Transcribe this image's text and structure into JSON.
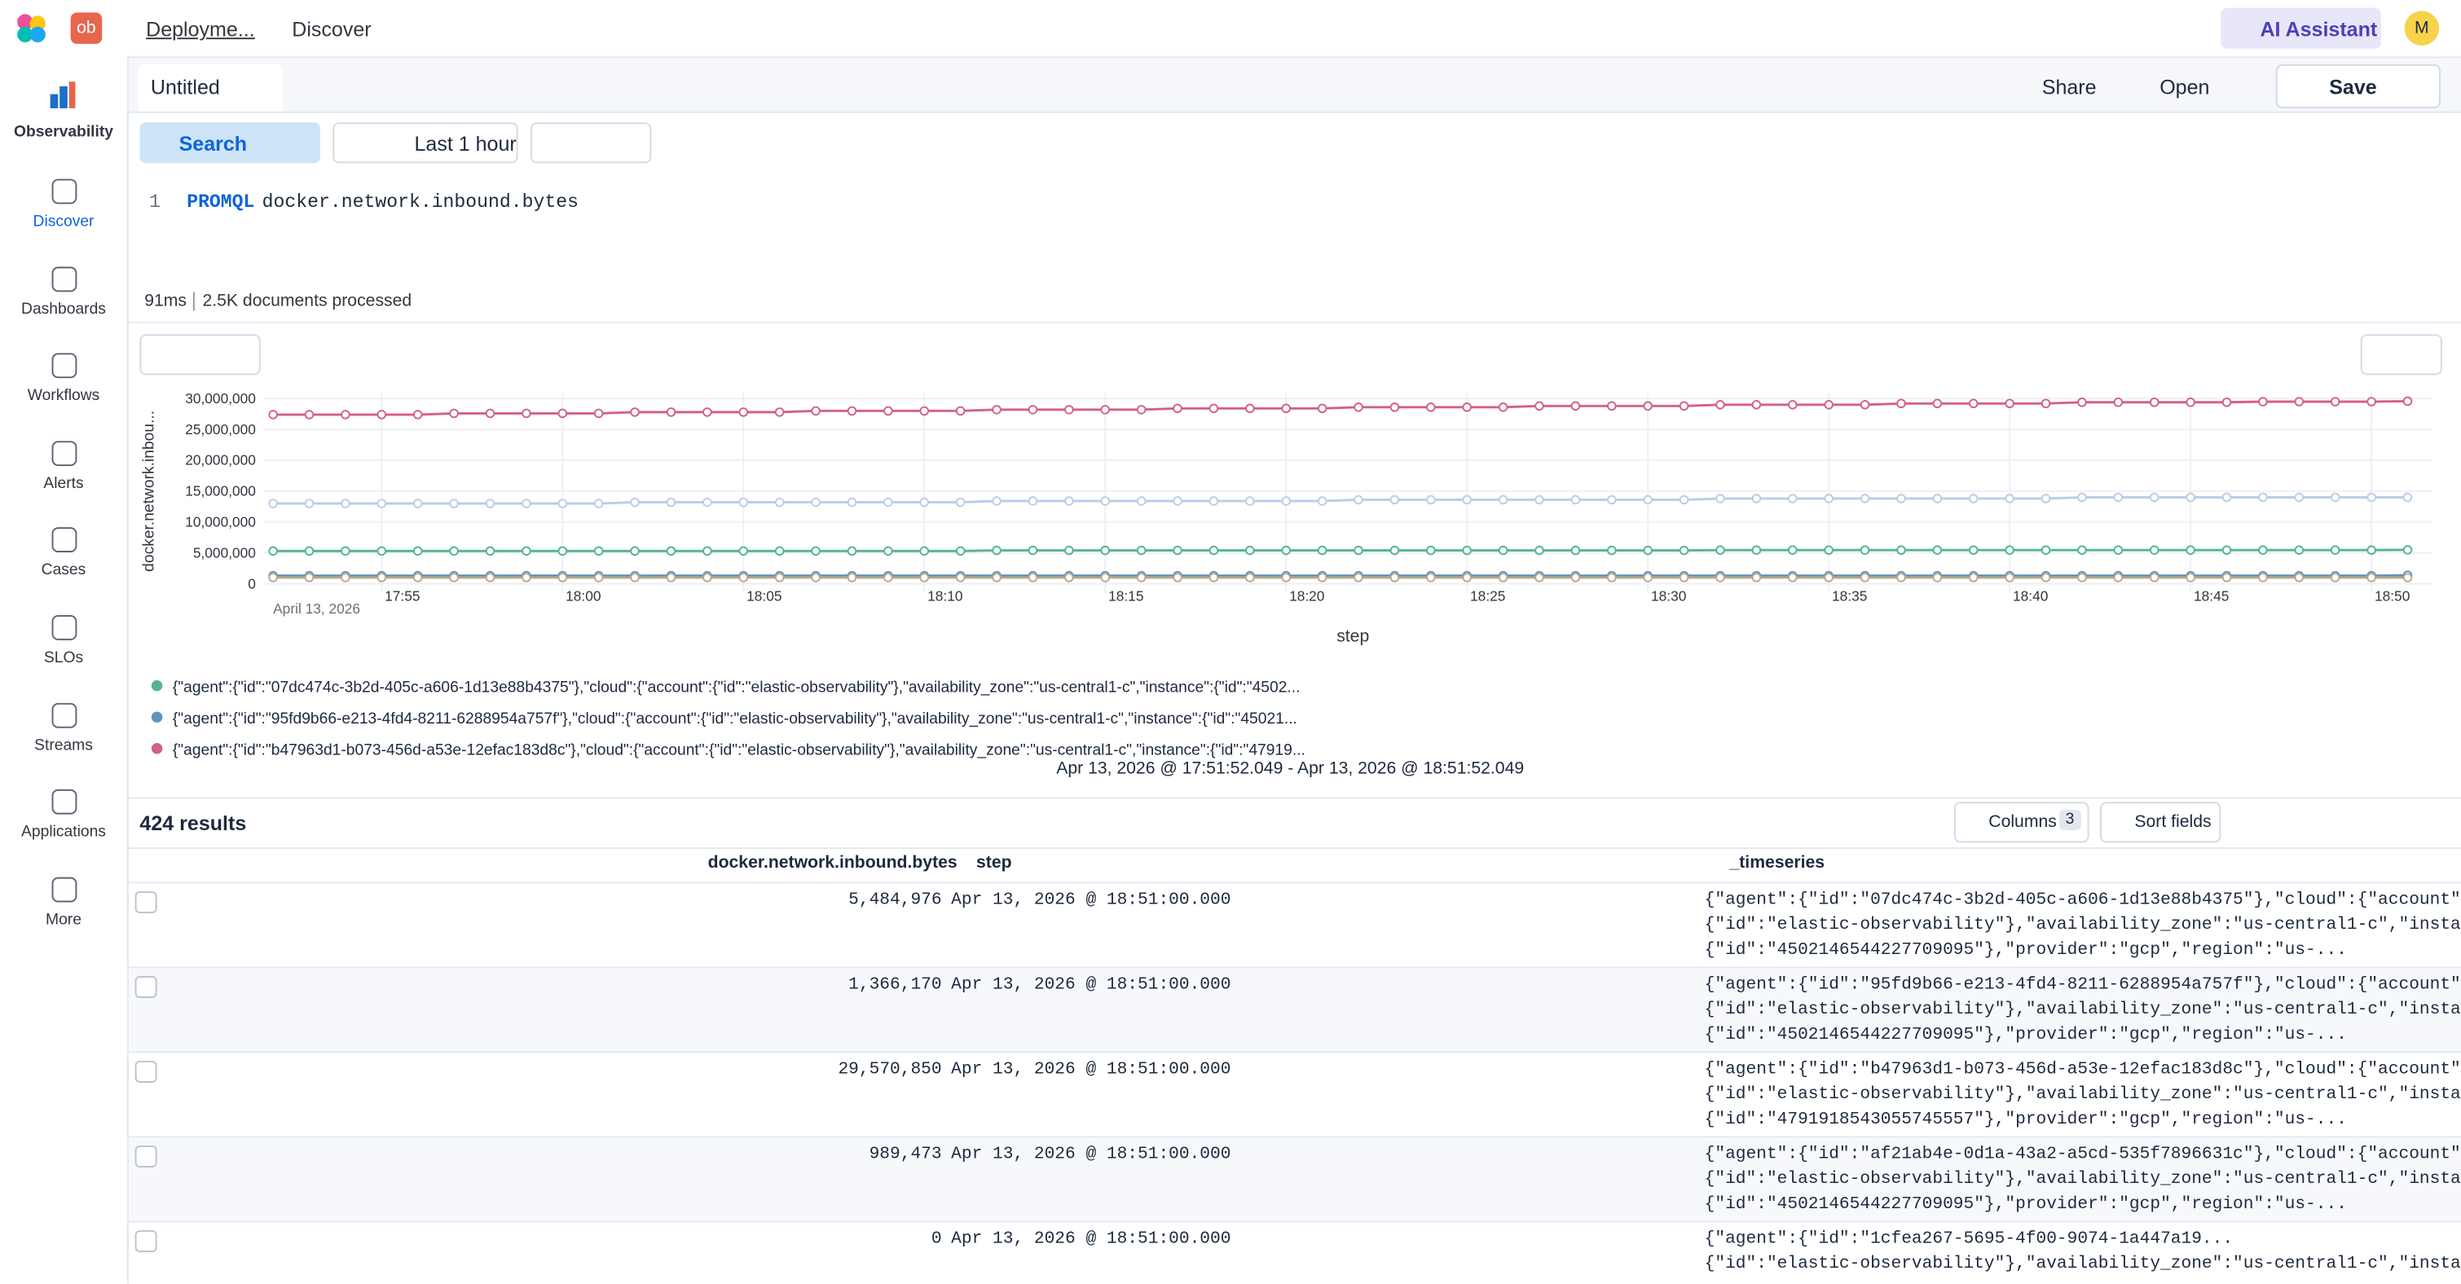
{
  "header": {
    "logo_badge": "ob",
    "breadcrumb": "Deployme...",
    "page": "Discover",
    "ai": "AI Assistant",
    "avatar": "M"
  },
  "sidebar": {
    "brand": "Observability",
    "items": [
      "Discover",
      "Dashboards",
      "Workflows",
      "Alerts",
      "Cases",
      "SLOs",
      "Streams",
      "Applications",
      "More"
    ]
  },
  "tabs": {
    "tab": "Untitled",
    "share": "Share",
    "open": "Open",
    "save": "Save"
  },
  "query": {
    "search": "Search",
    "time": "Last 1 hour",
    "line": "1",
    "keyword": "PROMQL",
    "text": "docker.network.inbound.bytes",
    "took": "91ms",
    "processed": "2.5K documents processed"
  },
  "chart_data": {
    "type": "line",
    "ylabel": "docker.network.inbou...",
    "xlabel": "step",
    "date": "April 13, 2026",
    "range": "Apr 13, 2026 @ 17:51:52.049 - Apr 13, 2026 @ 18:51:52.049",
    "grid": true,
    "ylim": [
      0,
      30000000
    ],
    "yticks": [
      0,
      {
        "value": 5000000,
        "label": "5,000,000"
      },
      {
        "value": 10000000,
        "label": "10,000,000"
      },
      {
        "value": 15000000,
        "label": "15,000,000"
      },
      {
        "value": 20000000,
        "label": "20,000,000"
      },
      {
        "value": 25000000,
        "label": "25,000,000"
      },
      {
        "value": 30000000,
        "label": "30,000,000"
      }
    ],
    "categories": [
      null,
      null,
      null,
      "17:55",
      null,
      null,
      null,
      null,
      "18:00",
      null,
      null,
      null,
      null,
      "18:05",
      null,
      null,
      null,
      null,
      "18:10",
      null,
      null,
      null,
      null,
      "18:15",
      null,
      null,
      null,
      null,
      "18:20",
      null,
      null,
      null,
      null,
      "18:25",
      null,
      null,
      null,
      null,
      "18:30",
      null,
      null,
      null,
      null,
      "18:35",
      null,
      null,
      null,
      null,
      "18:40",
      null,
      null,
      null,
      null,
      "18:45",
      null,
      null,
      null,
      null,
      "18:50",
      null
    ],
    "series": [
      {
        "name": "{\"agent\":{\"id\":\"07dc474c-3b2d-405c-a606-1d13e88b4375\"},\"cloud\":{\"account\":{\"id\":\"elastic-observability\"},\"availability_zone\":\"us-central1-c\",\"instance\":{\"id\":\"4502...",
        "color": "#54b399",
        "values": [
          5300000,
          5300000,
          5300000,
          5300000,
          5300000,
          5300000,
          5300000,
          5300000,
          5300000,
          5300000,
          5300000,
          5300000,
          5300000,
          5300000,
          5300000,
          5300000,
          5300000,
          5300000,
          5300000,
          5300000,
          5400000,
          5400000,
          5400000,
          5400000,
          5400000,
          5400000,
          5400000,
          5400000,
          5400000,
          5400000,
          5400000,
          5400000,
          5400000,
          5400000,
          5400000,
          5400000,
          5400000,
          5400000,
          5400000,
          5400000,
          5450000,
          5450000,
          5450000,
          5450000,
          5450000,
          5450000,
          5450000,
          5450000,
          5450000,
          5450000,
          5450000,
          5450000,
          5450000,
          5450000,
          5450000,
          5450000,
          5450000,
          5450000,
          5450000,
          5484976
        ]
      },
      {
        "name": "{\"agent\":{\"id\":\"95fd9b66-e213-4fd4-8211-6288954a757f\"},\"cloud\":{\"account\":{\"id\":\"elastic-observability\"},\"availability_zone\":\"us-central1-c\",\"instance\":{\"id\":\"45021...",
        "color": "#6092c0",
        "values": [
          1300000,
          1300000,
          1300000,
          1300000,
          1300000,
          1300000,
          1300000,
          1300000,
          1300000,
          1300000,
          1300000,
          1300000,
          1300000,
          1300000,
          1300000,
          1300000,
          1300000,
          1300000,
          1300000,
          1300000,
          1300000,
          1300000,
          1300000,
          1300000,
          1300000,
          1300000,
          1300000,
          1300000,
          1300000,
          1300000,
          1300000,
          1300000,
          1300000,
          1300000,
          1300000,
          1300000,
          1300000,
          1300000,
          1300000,
          1300000,
          1300000,
          1300000,
          1300000,
          1300000,
          1300000,
          1300000,
          1300000,
          1300000,
          1300000,
          1300000,
          1300000,
          1300000,
          1300000,
          1300000,
          1300000,
          1300000,
          1300000,
          1300000,
          1300000,
          1366170
        ]
      },
      {
        "name": "{\"agent\":{\"id\":\"b47963d1-b073-456d-a53e-12efac183d8c\"},\"cloud\":{\"account\":{\"id\":\"elastic-observability\"},\"availability_zone\":\"us-central1-c\",\"instance\":{\"id\":\"47919...",
        "color": "#d36086",
        "values": [
          27400000,
          27400000,
          27400000,
          27400000,
          27400000,
          27600000,
          27600000,
          27600000,
          27600000,
          27600000,
          27800000,
          27800000,
          27800000,
          27800000,
          27800000,
          28000000,
          28000000,
          28000000,
          28000000,
          28000000,
          28200000,
          28200000,
          28200000,
          28200000,
          28200000,
          28400000,
          28400000,
          28400000,
          28400000,
          28400000,
          28600000,
          28600000,
          28600000,
          28600000,
          28600000,
          28800000,
          28800000,
          28800000,
          28800000,
          28800000,
          29000000,
          29000000,
          29000000,
          29000000,
          29000000,
          29200000,
          29200000,
          29200000,
          29200000,
          29200000,
          29400000,
          29400000,
          29400000,
          29400000,
          29400000,
          29500000,
          29500000,
          29500000,
          29500000,
          29570850
        ]
      },
      {
        "color": "#b8cde8",
        "values": [
          13000000,
          13000000,
          13000000,
          13000000,
          13000000,
          13000000,
          13000000,
          13000000,
          13000000,
          13000000,
          13200000,
          13200000,
          13200000,
          13200000,
          13200000,
          13200000,
          13200000,
          13200000,
          13200000,
          13200000,
          13400000,
          13400000,
          13400000,
          13400000,
          13400000,
          13400000,
          13400000,
          13400000,
          13400000,
          13400000,
          13600000,
          13600000,
          13600000,
          13600000,
          13600000,
          13600000,
          13600000,
          13600000,
          13600000,
          13600000,
          13800000,
          13800000,
          13800000,
          13800000,
          13800000,
          13800000,
          13800000,
          13800000,
          13800000,
          13800000,
          14000000,
          14000000,
          14000000,
          14000000,
          14000000,
          14000000,
          14000000,
          14000000,
          14000000,
          14000000
        ]
      },
      {
        "color": "#b9a888",
        "values": [
          1000000,
          1000000,
          1000000,
          1000000,
          1000000,
          1000000,
          1000000,
          1000000,
          1000000,
          1000000,
          1000000,
          1000000,
          1000000,
          1000000,
          1000000,
          1000000,
          1000000,
          1000000,
          1000000,
          1000000,
          1000000,
          1000000,
          1000000,
          1000000,
          1000000,
          1000000,
          1000000,
          1000000,
          1000000,
          1000000,
          1000000,
          1000000,
          1000000,
          1000000,
          1000000,
          1000000,
          1000000,
          1000000,
          1000000,
          1000000,
          1000000,
          1000000,
          1000000,
          1000000,
          1000000,
          1000000,
          1000000,
          1000000,
          1000000,
          1000000,
          1000000,
          1000000,
          1000000,
          1000000,
          1000000,
          1000000,
          1000000,
          1000000,
          1000000,
          989473
        ]
      }
    ]
  },
  "results": {
    "count": "424 results",
    "columns": "Columns",
    "columns_count": "3",
    "sort": "Sort fields",
    "headers": [
      "docker.network.inbound.bytes",
      "step",
      "_timeseries"
    ],
    "rows": [
      [
        "5,484,976",
        "Apr 13, 2026 @ 18:51:00.000",
        [
          "{\"agent\":{\"id\":\"07dc474c-3b2d-405c-a606-1d13e88b4375\"},\"cloud\":{\"account\":",
          "{\"id\":\"elastic-observability\"},\"availability_zone\":\"us-central1-c\",\"instance\":",
          "{\"id\":\"4502146544227709095\"},\"provider\":\"gcp\",\"region\":\"us-..."
        ]
      ],
      [
        "1,366,170",
        "Apr 13, 2026 @ 18:51:00.000",
        [
          "{\"agent\":{\"id\":\"95fd9b66-e213-4fd4-8211-6288954a757f\"},\"cloud\":{\"account\":",
          "{\"id\":\"elastic-observability\"},\"availability_zone\":\"us-central1-c\",\"instance\":",
          "{\"id\":\"4502146544227709095\"},\"provider\":\"gcp\",\"region\":\"us-..."
        ]
      ],
      [
        "29,570,850",
        "Apr 13, 2026 @ 18:51:00.000",
        [
          "{\"agent\":{\"id\":\"b47963d1-b073-456d-a53e-12efac183d8c\"},\"cloud\":{\"account\":",
          "{\"id\":\"elastic-observability\"},\"availability_zone\":\"us-central1-c\",\"instance\":",
          "{\"id\":\"4791918543055745557\"},\"provider\":\"gcp\",\"region\":\"us-..."
        ]
      ],
      [
        "989,473",
        "Apr 13, 2026 @ 18:51:00.000",
        [
          "{\"agent\":{\"id\":\"af21ab4e-0d1a-43a2-a5cd-535f7896631c\"},\"cloud\":{\"account\":",
          "{\"id\":\"elastic-observability\"},\"availability_zone\":\"us-central1-c\",\"instance\":",
          "{\"id\":\"4502146544227709095\"},\"provider\":\"gcp\",\"region\":\"us-..."
        ]
      ],
      [
        "0",
        "Apr 13, 2026 @ 18:51:00.000",
        [
          "{\"agent\":{\"id\":\"1cfea267-5695-4f00-9074-1a447a19...",
          "{\"id\":\"elastic-observability\"},\"availability_zone\":\"us-central1-c\",\"instance\":"
        ]
      ]
    ]
  }
}
